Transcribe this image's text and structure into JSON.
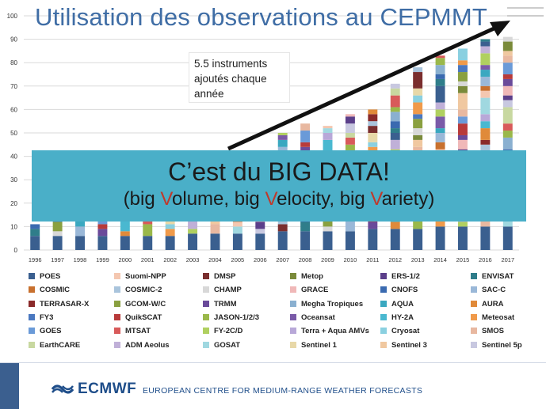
{
  "slide": {
    "title": "Utilisation des observations au CEPMMT",
    "note_line1": "5.5 instruments",
    "note_line2": "ajoutés chaque",
    "note_line3": "année",
    "banner_line1": "C’est du BIG DATA!",
    "banner_line2_pre": "(big ",
    "banner_v1": "V",
    "banner_w1": "olume, big ",
    "banner_v2": "V",
    "banner_w2": "elocity, big ",
    "banner_v3": "V",
    "banner_w3": "ariety)",
    "footer_logo": "ECMWF",
    "footer_text": "EUROPEAN CENTRE FOR MEDIUM-RANGE WEATHER FORECASTS"
  },
  "colors": {
    "title": "#3f6da5",
    "banner": "#4aafc8",
    "banner_highlight": "#c0392b",
    "arrow": "#111111",
    "logo": "#1f4e8a"
  },
  "chart_data": {
    "type": "bar",
    "stacked": true,
    "categories": [
      "1996",
      "1997",
      "1998",
      "1999",
      "2000",
      "2001",
      "2002",
      "2003",
      "2004",
      "2005",
      "2006",
      "2007",
      "2008",
      "2009",
      "2010",
      "2011",
      "2012",
      "2013",
      "2014",
      "2015",
      "2016",
      "2017"
    ],
    "totals": [
      11,
      13,
      13,
      14,
      16,
      16,
      18,
      22,
      24,
      28,
      32,
      50,
      54,
      53,
      58,
      60,
      71,
      78,
      83,
      86,
      90,
      91
    ],
    "ylim": [
      0,
      100
    ],
    "yticks": [
      0,
      10,
      20,
      30,
      40,
      50,
      60,
      70,
      80,
      90,
      100
    ],
    "grid": true,
    "legend_position": "bottom",
    "series": [
      {
        "name": "POES",
        "color": "#3a5f8f"
      },
      {
        "name": "Suomi-NPP",
        "color": "#f4c7b0"
      },
      {
        "name": "DMSP",
        "color": "#7a2e2e"
      },
      {
        "name": "Metop",
        "color": "#7a8a3a"
      },
      {
        "name": "ERS-1/2",
        "color": "#5b3f8a"
      },
      {
        "name": "ENVISAT",
        "color": "#2f7d8a"
      },
      {
        "name": "COSMIC",
        "color": "#c8702e"
      },
      {
        "name": "COSMIC-2",
        "color": "#a9c4dc"
      },
      {
        "name": "CHAMP",
        "color": "#d8d8d8"
      },
      {
        "name": "GRACE",
        "color": "#f0b8b8"
      },
      {
        "name": "CNOFS",
        "color": "#3a6ab0"
      },
      {
        "name": "SAC-C",
        "color": "#9ab8d8"
      },
      {
        "name": "TERRASAR-X",
        "color": "#8a2a2a"
      },
      {
        "name": "GCOM-W/C",
        "color": "#8aa040"
      },
      {
        "name": "TRMM",
        "color": "#6a4a9a"
      },
      {
        "name": "Megha Tropiques",
        "color": "#8ab0d0"
      },
      {
        "name": "AQUA",
        "color": "#3aa8c0"
      },
      {
        "name": "AURA",
        "color": "#e08a3a"
      },
      {
        "name": "FY3",
        "color": "#4a78c0"
      },
      {
        "name": "QuikSCAT",
        "color": "#b83a3a"
      },
      {
        "name": "JASON-1/2/3",
        "color": "#9ab84a"
      },
      {
        "name": "Oceansat",
        "color": "#7a5aa8"
      },
      {
        "name": "HY-2A",
        "color": "#4ab8d0"
      },
      {
        "name": "Meteosat",
        "color": "#f09a4a"
      },
      {
        "name": "GOES",
        "color": "#6a9ad8"
      },
      {
        "name": "MTSAT",
        "color": "#d85a5a"
      },
      {
        "name": "FY-2C/D",
        "color": "#b0d060"
      },
      {
        "name": "Terra + Aqua AMVs",
        "color": "#b8a8d8"
      },
      {
        "name": "Cryosat",
        "color": "#8ad0e0"
      },
      {
        "name": "SMOS",
        "color": "#e8b8a0"
      },
      {
        "name": "EarthCARE",
        "color": "#c8d8a0"
      },
      {
        "name": "ADM Aeolus",
        "color": "#c0b0d8"
      },
      {
        "name": "GOSAT",
        "color": "#a0d8e0"
      },
      {
        "name": "Sentinel 1",
        "color": "#e8d8a8"
      },
      {
        "name": "Sentinel 3",
        "color": "#f0c8a0"
      },
      {
        "name": "Sentinel 5p",
        "color": "#c8c8e0"
      }
    ]
  }
}
